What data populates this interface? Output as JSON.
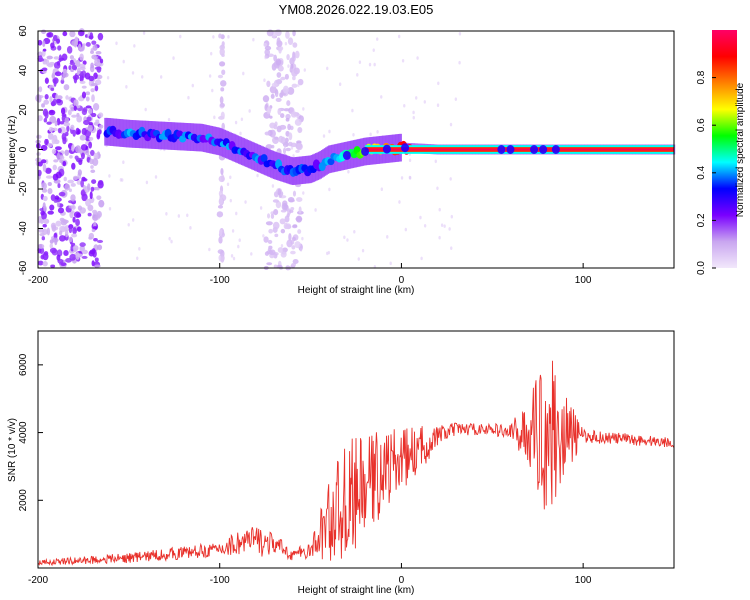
{
  "chart_data": [
    {
      "type": "heatmap",
      "title": "YM08.2026.022.19.03.E05",
      "xlabel": "Height of straight line (km)",
      "ylabel": "Frequency (Hz)",
      "xlim": [
        -200,
        150
      ],
      "ylim": [
        -60,
        60
      ],
      "x_ticks": [
        -200,
        -100,
        0,
        100
      ],
      "y_ticks": [
        -60,
        -40,
        -20,
        0,
        20,
        40,
        60
      ],
      "colorbar": {
        "label": "Normalized spectral amplitude",
        "range": [
          0.0,
          1.0
        ],
        "ticks": [
          0.0,
          0.2,
          0.4,
          0.6,
          0.8
        ],
        "colormap": [
          "#f2e8fb",
          "#c9a6f0",
          "#7a00ff",
          "#0000ff",
          "#00ffff",
          "#00ff00",
          "#ffff00",
          "#ff8000",
          "#ff0000",
          "#ff0066"
        ]
      },
      "features": {
        "trace": [
          {
            "x": -162,
            "y": 9
          },
          {
            "x": -150,
            "y": 8
          },
          {
            "x": -130,
            "y": 7
          },
          {
            "x": -110,
            "y": 6
          },
          {
            "x": -100,
            "y": 4
          },
          {
            "x": -90,
            "y": 0
          },
          {
            "x": -80,
            "y": -4
          },
          {
            "x": -70,
            "y": -8
          },
          {
            "x": -60,
            "y": -11
          },
          {
            "x": -50,
            "y": -10
          },
          {
            "x": -45,
            "y": -8
          },
          {
            "x": -40,
            "y": -5
          },
          {
            "x": -30,
            "y": -3
          },
          {
            "x": -20,
            "y": -1
          },
          {
            "x": -10,
            "y": 0
          },
          {
            "x": 0,
            "y": 1
          },
          {
            "x": 20,
            "y": 0
          },
          {
            "x": 150,
            "y": 0
          }
        ],
        "noise_columns_km": [
          [
            -200,
            -165
          ],
          [
            -100,
            -98
          ],
          [
            -75,
            -55
          ]
        ]
      }
    },
    {
      "type": "line",
      "title": "",
      "xlabel": "Height of straight line (km)",
      "ylabel": "SNR (10 * v/v)",
      "xlim": [
        -200,
        150
      ],
      "ylim": [
        0,
        7000
      ],
      "x_ticks": [
        -200,
        -100,
        0,
        100
      ],
      "y_ticks": [
        2000,
        4000,
        6000
      ],
      "series": [
        {
          "color": "#e8302a",
          "envelope": [
            {
              "x": -200,
              "mean": 150,
              "amp": 80
            },
            {
              "x": -150,
              "mean": 300,
              "amp": 150
            },
            {
              "x": -120,
              "mean": 450,
              "amp": 200
            },
            {
              "x": -100,
              "mean": 550,
              "amp": 200
            },
            {
              "x": -90,
              "mean": 750,
              "amp": 400
            },
            {
              "x": -80,
              "mean": 800,
              "amp": 500
            },
            {
              "x": -70,
              "mean": 700,
              "amp": 300
            },
            {
              "x": -60,
              "mean": 400,
              "amp": 200
            },
            {
              "x": -50,
              "mean": 500,
              "amp": 200
            },
            {
              "x": -40,
              "mean": 1400,
              "amp": 1300
            },
            {
              "x": -30,
              "mean": 2000,
              "amp": 1800
            },
            {
              "x": -20,
              "mean": 2400,
              "amp": 1500
            },
            {
              "x": -10,
              "mean": 2900,
              "amp": 1300
            },
            {
              "x": 0,
              "mean": 3200,
              "amp": 900
            },
            {
              "x": 10,
              "mean": 3500,
              "amp": 700
            },
            {
              "x": 20,
              "mean": 3900,
              "amp": 300
            },
            {
              "x": 30,
              "mean": 4100,
              "amp": 200
            },
            {
              "x": 50,
              "mean": 4100,
              "amp": 150
            },
            {
              "x": 60,
              "mean": 4000,
              "amp": 300
            },
            {
              "x": 70,
              "mean": 4000,
              "amp": 900
            },
            {
              "x": 80,
              "mean": 4050,
              "amp": 2600
            },
            {
              "x": 90,
              "mean": 3950,
              "amp": 1300
            },
            {
              "x": 100,
              "mean": 3900,
              "amp": 200
            },
            {
              "x": 150,
              "mean": 3700,
              "amp": 150
            }
          ]
        }
      ]
    }
  ]
}
